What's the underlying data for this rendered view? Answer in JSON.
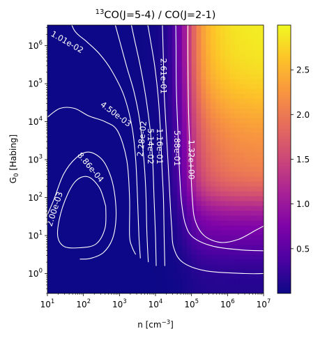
{
  "chart_data": {
    "type": "heatmap",
    "title_main": "CO(J=5-4) / CO(J=2-1)",
    "title_super": "13",
    "xlabel_base": "n [cm",
    "xlabel_sup": "−3",
    "xlabel_end": "]",
    "ylabel_base": "G",
    "ylabel_sub": "0",
    "ylabel_end": " [Habing]",
    "x_scale": "log",
    "y_scale": "log",
    "xlim": [
      10,
      10000000
    ],
    "ylim": [
      0.3,
      3500000
    ],
    "x_ticks": [
      {
        "value": 10,
        "base": "10",
        "exp": "1"
      },
      {
        "value": 100,
        "base": "10",
        "exp": "2"
      },
      {
        "value": 1000,
        "base": "10",
        "exp": "3"
      },
      {
        "value": 10000,
        "base": "10",
        "exp": "4"
      },
      {
        "value": 100000,
        "base": "10",
        "exp": "5"
      },
      {
        "value": 1000000,
        "base": "10",
        "exp": "6"
      },
      {
        "value": 10000000,
        "base": "10",
        "exp": "7"
      }
    ],
    "y_ticks": [
      {
        "value": 1,
        "base": "10",
        "exp": "0"
      },
      {
        "value": 10,
        "base": "10",
        "exp": "1"
      },
      {
        "value": 100,
        "base": "10",
        "exp": "2"
      },
      {
        "value": 1000,
        "base": "10",
        "exp": "3"
      },
      {
        "value": 10000,
        "base": "10",
        "exp": "4"
      },
      {
        "value": 100000,
        "base": "10",
        "exp": "5"
      },
      {
        "value": 1000000,
        "base": "10",
        "exp": "6"
      }
    ],
    "colormap": "plasma",
    "colorbar_range": [
      0,
      3.0
    ],
    "colorbar_ticks": [
      {
        "value": 0.5,
        "label": "0.5"
      },
      {
        "value": 1.0,
        "label": "1.0"
      },
      {
        "value": 1.5,
        "label": "1.5"
      },
      {
        "value": 2.0,
        "label": "2.0"
      },
      {
        "value": 2.5,
        "label": "2.5"
      }
    ],
    "contour_levels": [
      {
        "label": "2.00e-03",
        "log_n": 1.2,
        "log_g": 1.7,
        "angle": -72
      },
      {
        "label": "8.86e-04",
        "log_n": 2.2,
        "log_g": 2.8,
        "angle": 50
      },
      {
        "label": "4.50e-03",
        "log_n": 2.9,
        "log_g": 4.2,
        "angle": 37
      },
      {
        "label": "1.01e-02",
        "log_n": 1.55,
        "log_g": 6.1,
        "angle": 30
      },
      {
        "label": "2.28e-02",
        "log_n": 3.62,
        "log_g": 3.55,
        "angle": -84
      },
      {
        "label": "5.14e-02",
        "log_n": 3.86,
        "log_g": 3.35,
        "angle": 90
      },
      {
        "label": "1.16e-01",
        "log_n": 4.12,
        "log_g": 3.35,
        "angle": 90
      },
      {
        "label": "2.61e-01",
        "log_n": 4.22,
        "log_g": 5.2,
        "angle": 90
      },
      {
        "label": "5.88e-01",
        "log_n": 4.6,
        "log_g": 3.3,
        "angle": 90
      },
      {
        "label": "1.32e+00",
        "log_n": 5.0,
        "log_g": 3.0,
        "angle": 90
      }
    ]
  }
}
